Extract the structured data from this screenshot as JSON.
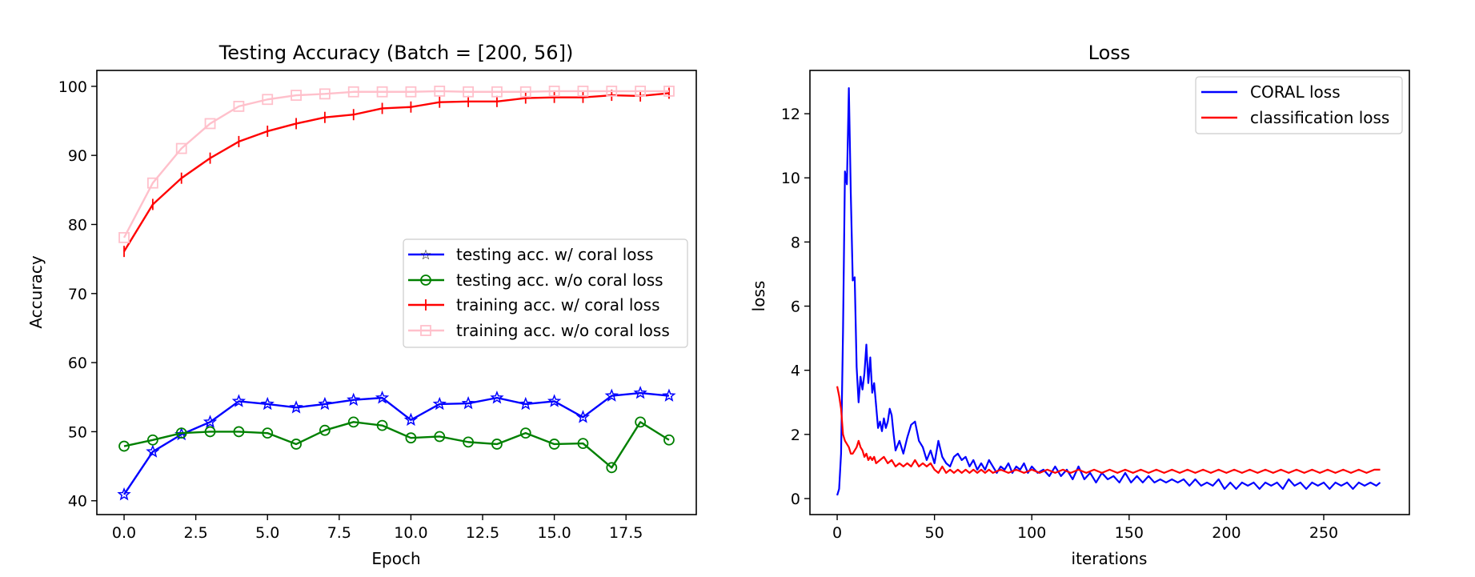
{
  "chart_data": [
    {
      "type": "line",
      "title": "Testing Accuracy (Batch = [200, 56])",
      "xlabel": "Epoch",
      "ylabel": "Accuracy",
      "xlim": [
        -0.95,
        19.95
      ],
      "ylim": [
        38.0,
        102.3
      ],
      "xticks": [
        0,
        2.5,
        5,
        7.5,
        10,
        12.5,
        15,
        17.5
      ],
      "xtick_labels": [
        "0.0",
        "2.5",
        "5.0",
        "7.5",
        "10.0",
        "12.5",
        "15.0",
        "17.5"
      ],
      "yticks": [
        40,
        50,
        60,
        70,
        80,
        90,
        100
      ],
      "ytick_labels": [
        "40",
        "50",
        "60",
        "70",
        "80",
        "90",
        "100"
      ],
      "grid": false,
      "legend_position": "center-right",
      "x": [
        0,
        1,
        2,
        3,
        4,
        5,
        6,
        7,
        8,
        9,
        10,
        11,
        12,
        13,
        14,
        15,
        16,
        17,
        18,
        19
      ],
      "series": [
        {
          "name": "testing acc. w/ coral loss",
          "color": "#0000ff",
          "marker": "star",
          "values": [
            40.9,
            47.1,
            49.6,
            51.4,
            54.4,
            54.0,
            53.5,
            54.0,
            54.6,
            54.9,
            51.7,
            54.0,
            54.1,
            54.9,
            54.0,
            54.4,
            52.1,
            55.2,
            55.6,
            55.2
          ]
        },
        {
          "name": "testing acc. w/o coral loss",
          "color": "#008000",
          "marker": "circle",
          "values": [
            47.9,
            48.8,
            49.8,
            50.0,
            50.0,
            49.8,
            48.2,
            50.2,
            51.4,
            50.9,
            49.1,
            49.3,
            48.5,
            48.2,
            49.8,
            48.2,
            48.3,
            44.8,
            51.4,
            48.8
          ]
        },
        {
          "name": "training acc. w/ coral loss",
          "color": "#ff0000",
          "marker": "plus",
          "values": [
            76.1,
            82.9,
            86.7,
            89.6,
            92.0,
            93.5,
            94.6,
            95.5,
            95.9,
            96.8,
            97.0,
            97.7,
            97.8,
            97.8,
            98.3,
            98.4,
            98.4,
            98.7,
            98.6,
            99.0
          ]
        },
        {
          "name": "training acc. w/o coral loss",
          "color": "#ffc0cb",
          "marker": "square",
          "values": [
            78.1,
            86.0,
            91.0,
            94.6,
            97.1,
            98.1,
            98.7,
            98.9,
            99.2,
            99.2,
            99.2,
            99.3,
            99.2,
            99.2,
            99.2,
            99.3,
            99.3,
            99.3,
            99.3,
            99.3
          ]
        }
      ]
    },
    {
      "type": "line",
      "title": "Loss",
      "xlabel": "iterations",
      "ylabel": "loss",
      "xlim": [
        -14,
        294
      ],
      "ylim": [
        -0.5,
        13.35
      ],
      "xticks": [
        0,
        50,
        100,
        150,
        200,
        250
      ],
      "xtick_labels": [
        "0",
        "50",
        "100",
        "150",
        "200",
        "250"
      ],
      "yticks": [
        0,
        2,
        4,
        6,
        8,
        10,
        12
      ],
      "ytick_labels": [
        "0",
        "2",
        "4",
        "6",
        "8",
        "10",
        "12"
      ],
      "grid": false,
      "legend_position": "top-right",
      "series": [
        {
          "name": "CORAL loss",
          "color": "#0000ff",
          "points": [
            [
              0,
              0.1
            ],
            [
              1,
              0.3
            ],
            [
              2,
              1.4
            ],
            [
              3,
              5.2
            ],
            [
              4,
              10.2
            ],
            [
              5,
              9.8
            ],
            [
              6,
              12.8
            ],
            [
              7,
              9.5
            ],
            [
              8,
              6.8
            ],
            [
              9,
              6.9
            ],
            [
              10,
              4.1
            ],
            [
              11,
              3.0
            ],
            [
              12,
              3.8
            ],
            [
              13,
              3.4
            ],
            [
              14,
              3.9
            ],
            [
              15,
              4.8
            ],
            [
              16,
              3.6
            ],
            [
              17,
              4.4
            ],
            [
              18,
              3.3
            ],
            [
              19,
              3.6
            ],
            [
              20,
              2.9
            ],
            [
              21,
              2.2
            ],
            [
              22,
              2.4
            ],
            [
              23,
              2.1
            ],
            [
              24,
              2.5
            ],
            [
              25,
              2.2
            ],
            [
              26,
              2.4
            ],
            [
              27,
              2.8
            ],
            [
              28,
              2.6
            ],
            [
              29,
              2.0
            ],
            [
              30,
              1.5
            ],
            [
              32,
              1.8
            ],
            [
              34,
              1.4
            ],
            [
              36,
              1.9
            ],
            [
              38,
              2.3
            ],
            [
              40,
              2.4
            ],
            [
              42,
              1.8
            ],
            [
              44,
              1.6
            ],
            [
              46,
              1.2
            ],
            [
              48,
              1.5
            ],
            [
              50,
              1.1
            ],
            [
              52,
              1.8
            ],
            [
              54,
              1.3
            ],
            [
              56,
              1.1
            ],
            [
              58,
              1.0
            ],
            [
              60,
              1.3
            ],
            [
              62,
              1.4
            ],
            [
              64,
              1.2
            ],
            [
              66,
              1.3
            ],
            [
              68,
              1.0
            ],
            [
              70,
              1.2
            ],
            [
              72,
              0.9
            ],
            [
              74,
              1.1
            ],
            [
              76,
              0.9
            ],
            [
              78,
              1.2
            ],
            [
              80,
              1.0
            ],
            [
              82,
              0.8
            ],
            [
              84,
              1.0
            ],
            [
              86,
              0.9
            ],
            [
              88,
              1.1
            ],
            [
              90,
              0.8
            ],
            [
              92,
              1.0
            ],
            [
              94,
              0.9
            ],
            [
              96,
              1.1
            ],
            [
              98,
              0.8
            ],
            [
              100,
              1.0
            ],
            [
              103,
              0.8
            ],
            [
              106,
              0.9
            ],
            [
              109,
              0.7
            ],
            [
              112,
              1.0
            ],
            [
              115,
              0.7
            ],
            [
              118,
              0.9
            ],
            [
              121,
              0.6
            ],
            [
              124,
              1.0
            ],
            [
              127,
              0.6
            ],
            [
              130,
              0.8
            ],
            [
              133,
              0.5
            ],
            [
              136,
              0.8
            ],
            [
              139,
              0.6
            ],
            [
              142,
              0.7
            ],
            [
              145,
              0.5
            ],
            [
              148,
              0.8
            ],
            [
              151,
              0.5
            ],
            [
              154,
              0.7
            ],
            [
              157,
              0.5
            ],
            [
              160,
              0.7
            ],
            [
              163,
              0.5
            ],
            [
              166,
              0.6
            ],
            [
              169,
              0.5
            ],
            [
              172,
              0.6
            ],
            [
              175,
              0.5
            ],
            [
              178,
              0.6
            ],
            [
              181,
              0.4
            ],
            [
              184,
              0.6
            ],
            [
              187,
              0.4
            ],
            [
              190,
              0.5
            ],
            [
              193,
              0.4
            ],
            [
              196,
              0.6
            ],
            [
              199,
              0.3
            ],
            [
              202,
              0.5
            ],
            [
              205,
              0.3
            ],
            [
              208,
              0.5
            ],
            [
              211,
              0.4
            ],
            [
              214,
              0.5
            ],
            [
              217,
              0.3
            ],
            [
              220,
              0.5
            ],
            [
              223,
              0.4
            ],
            [
              226,
              0.5
            ],
            [
              229,
              0.3
            ],
            [
              232,
              0.6
            ],
            [
              235,
              0.4
            ],
            [
              238,
              0.5
            ],
            [
              241,
              0.3
            ],
            [
              244,
              0.5
            ],
            [
              247,
              0.4
            ],
            [
              250,
              0.5
            ],
            [
              253,
              0.3
            ],
            [
              256,
              0.5
            ],
            [
              259,
              0.4
            ],
            [
              262,
              0.5
            ],
            [
              265,
              0.3
            ],
            [
              268,
              0.5
            ],
            [
              271,
              0.4
            ],
            [
              274,
              0.5
            ],
            [
              277,
              0.4
            ],
            [
              279,
              0.5
            ]
          ]
        },
        {
          "name": "classification loss",
          "color": "#ff0000",
          "points": [
            [
              0,
              3.5
            ],
            [
              1,
              3.2
            ],
            [
              2,
              2.8
            ],
            [
              3,
              2.0
            ],
            [
              4,
              1.8
            ],
            [
              5,
              1.7
            ],
            [
              6,
              1.6
            ],
            [
              7,
              1.4
            ],
            [
              8,
              1.4
            ],
            [
              9,
              1.5
            ],
            [
              10,
              1.6
            ],
            [
              11,
              1.8
            ],
            [
              12,
              1.6
            ],
            [
              13,
              1.5
            ],
            [
              14,
              1.3
            ],
            [
              15,
              1.4
            ],
            [
              16,
              1.2
            ],
            [
              17,
              1.3
            ],
            [
              18,
              1.2
            ],
            [
              19,
              1.3
            ],
            [
              20,
              1.1
            ],
            [
              22,
              1.2
            ],
            [
              24,
              1.3
            ],
            [
              26,
              1.1
            ],
            [
              28,
              1.2
            ],
            [
              30,
              1.0
            ],
            [
              32,
              1.1
            ],
            [
              34,
              1.0
            ],
            [
              36,
              1.1
            ],
            [
              38,
              1.0
            ],
            [
              40,
              1.2
            ],
            [
              42,
              1.0
            ],
            [
              44,
              1.1
            ],
            [
              46,
              1.0
            ],
            [
              48,
              1.1
            ],
            [
              50,
              0.9
            ],
            [
              52,
              0.8
            ],
            [
              54,
              1.0
            ],
            [
              56,
              0.8
            ],
            [
              58,
              0.9
            ],
            [
              60,
              0.8
            ],
            [
              62,
              0.9
            ],
            [
              64,
              0.8
            ],
            [
              66,
              0.9
            ],
            [
              68,
              0.8
            ],
            [
              70,
              0.9
            ],
            [
              72,
              0.8
            ],
            [
              74,
              0.9
            ],
            [
              76,
              0.8
            ],
            [
              78,
              0.9
            ],
            [
              80,
              0.8
            ],
            [
              84,
              0.9
            ],
            [
              88,
              0.8
            ],
            [
              92,
              0.9
            ],
            [
              96,
              0.8
            ],
            [
              100,
              0.9
            ],
            [
              104,
              0.8
            ],
            [
              108,
              0.9
            ],
            [
              112,
              0.8
            ],
            [
              116,
              0.9
            ],
            [
              120,
              0.8
            ],
            [
              124,
              0.9
            ],
            [
              128,
              0.8
            ],
            [
              132,
              0.9
            ],
            [
              136,
              0.8
            ],
            [
              140,
              0.9
            ],
            [
              144,
              0.8
            ],
            [
              148,
              0.9
            ],
            [
              152,
              0.8
            ],
            [
              156,
              0.9
            ],
            [
              160,
              0.8
            ],
            [
              164,
              0.9
            ],
            [
              168,
              0.8
            ],
            [
              172,
              0.9
            ],
            [
              176,
              0.8
            ],
            [
              180,
              0.9
            ],
            [
              184,
              0.8
            ],
            [
              188,
              0.9
            ],
            [
              192,
              0.8
            ],
            [
              196,
              0.9
            ],
            [
              200,
              0.8
            ],
            [
              204,
              0.9
            ],
            [
              208,
              0.8
            ],
            [
              212,
              0.9
            ],
            [
              216,
              0.8
            ],
            [
              220,
              0.9
            ],
            [
              224,
              0.8
            ],
            [
              228,
              0.9
            ],
            [
              232,
              0.8
            ],
            [
              236,
              0.9
            ],
            [
              240,
              0.8
            ],
            [
              244,
              0.9
            ],
            [
              248,
              0.8
            ],
            [
              252,
              0.9
            ],
            [
              256,
              0.8
            ],
            [
              260,
              0.9
            ],
            [
              264,
              0.8
            ],
            [
              268,
              0.9
            ],
            [
              272,
              0.8
            ],
            [
              276,
              0.9
            ],
            [
              279,
              0.9
            ]
          ]
        }
      ]
    }
  ]
}
